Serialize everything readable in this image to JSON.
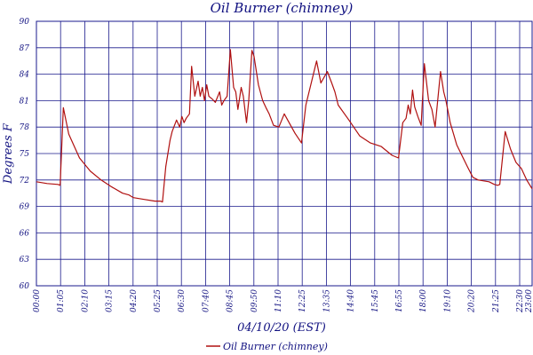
{
  "chart_data": {
    "type": "line",
    "title": "Oil Burner (chimney)",
    "xlabel": "04/10/20 (EST)",
    "ylabel": "Degrees F",
    "ylim": [
      60,
      90
    ],
    "yticks": [
      "90",
      "87",
      "84",
      "81",
      "78",
      "75",
      "72",
      "69",
      "66",
      "63",
      "60"
    ],
    "xticks": [
      "00:00",
      "01:05",
      "02:10",
      "03:15",
      "04:20",
      "05:25",
      "06:30",
      "07:40",
      "08:45",
      "09:50",
      "11:10",
      "12:25",
      "13:35",
      "14:40",
      "15:45",
      "16:55",
      "18:00",
      "19:10",
      "20:20",
      "21:25",
      "22:30",
      "23:00"
    ],
    "grid": true,
    "legend_position": "bottom",
    "colors": {
      "series": "#b01010",
      "grid": "#1a1a8c",
      "text": "#101080"
    },
    "series": [
      {
        "name": "Oil Burner (chimney)",
        "x": [
          0,
          0.5,
          1.0,
          1.1,
          1.25,
          1.5,
          2.0,
          2.5,
          3.0,
          3.5,
          4.0,
          4.3,
          4.5,
          5.0,
          5.5,
          5.75,
          5.85,
          6.0,
          6.2,
          6.3,
          6.5,
          6.65,
          6.75,
          6.85,
          6.95,
          7.1,
          7.2,
          7.35,
          7.5,
          7.6,
          7.7,
          7.8,
          7.9,
          8.0,
          8.15,
          8.3,
          8.5,
          8.6,
          8.7,
          8.85,
          9.0,
          9.15,
          9.25,
          9.35,
          9.5,
          9.6,
          9.75,
          9.85,
          10.0,
          10.1,
          10.3,
          10.5,
          10.65,
          10.8,
          11.0,
          11.25,
          11.5,
          12.0,
          12.3,
          12.5,
          13.0,
          13.2,
          13.5,
          13.7,
          13.85,
          14.0,
          14.5,
          15.0,
          15.5,
          16.0,
          16.5,
          16.8,
          17.0,
          17.15,
          17.25,
          17.35,
          17.45,
          17.55,
          17.7,
          17.85,
          18.0,
          18.2,
          18.35,
          18.5,
          18.75,
          18.9,
          19.0,
          19.2,
          19.5,
          20.0,
          20.25,
          20.5,
          21.0,
          21.25,
          21.4,
          21.5,
          21.75,
          22.0,
          22.25,
          22.5,
          22.75,
          23.0
        ],
        "values": [
          71.8,
          71.6,
          71.5,
          71.4,
          80.2,
          77.2,
          74.5,
          73.0,
          72.0,
          71.2,
          70.5,
          70.3,
          70.0,
          69.8,
          69.6,
          69.6,
          69.5,
          73.5,
          76.5,
          77.5,
          78.8,
          78.0,
          79.2,
          78.5,
          79.0,
          79.5,
          84.9,
          81.5,
          83.2,
          81.5,
          82.5,
          81.0,
          82.8,
          81.5,
          81.2,
          80.8,
          82.0,
          80.5,
          81.0,
          81.5,
          86.8,
          82.5,
          82.0,
          80.0,
          82.5,
          81.5,
          78.5,
          81.0,
          86.7,
          86.0,
          82.8,
          81.0,
          80.2,
          79.5,
          78.2,
          78.0,
          79.5,
          77.3,
          76.2,
          80.5,
          85.5,
          83.0,
          84.3,
          83.0,
          82.0,
          80.5,
          78.8,
          77.0,
          76.2,
          75.8,
          74.8,
          74.5,
          78.5,
          79.0,
          80.5,
          79.5,
          82.2,
          80.3,
          79.2,
          78.2,
          85.2,
          81.0,
          80.0,
          78.0,
          84.3,
          82.0,
          81.0,
          78.5,
          76.0,
          73.5,
          72.3,
          72.0,
          71.8,
          71.5,
          71.4,
          71.5,
          77.5,
          75.5,
          74.0,
          73.3,
          72.0,
          71.0
        ]
      }
    ]
  }
}
